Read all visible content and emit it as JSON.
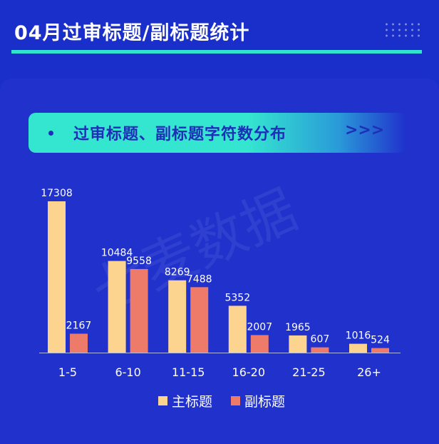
{
  "header": {
    "title": "04月过审标题/副标题统计"
  },
  "banner": {
    "title": "过审标题、副标题字符数分布",
    "arrows": ">>>"
  },
  "watermark": "七麦数据",
  "colors": {
    "main": "#fdd48f",
    "sub": "#ee7b6a",
    "accent": "#31e3d0"
  },
  "chart_data": {
    "type": "bar",
    "categories": [
      "1-5",
      "6-10",
      "11-15",
      "16-20",
      "21-25",
      "26+"
    ],
    "series": [
      {
        "name": "主标题",
        "values": [
          17308,
          10484,
          8269,
          5352,
          1965,
          1016
        ]
      },
      {
        "name": "副标题",
        "values": [
          2167,
          9558,
          7488,
          2007,
          607,
          524
        ]
      }
    ],
    "ylim": [
      0,
      17308
    ],
    "grid": false,
    "legend": "bottom"
  }
}
